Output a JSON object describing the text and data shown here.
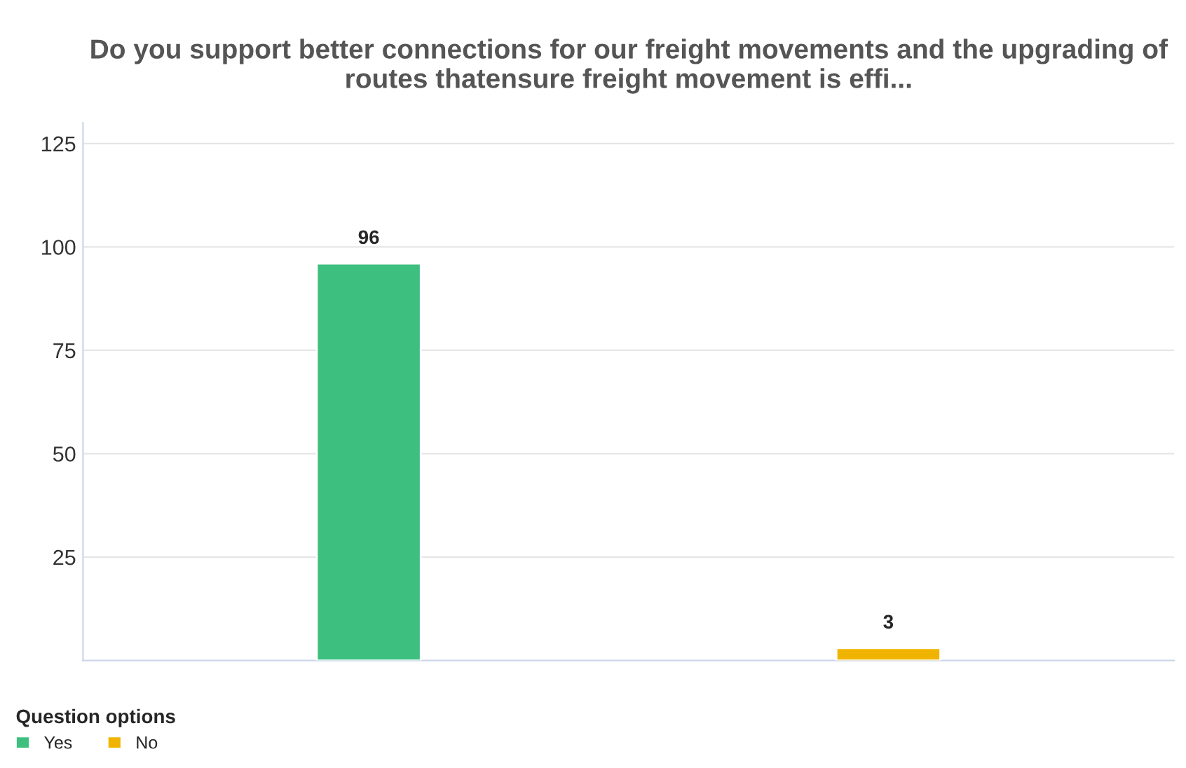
{
  "chart_data": {
    "type": "bar",
    "title": "Do you support better connections for our freight movements and the upgrading of routes thatensure freight movement is effi...",
    "categories": [
      null,
      null
    ],
    "series": [
      {
        "name": "Yes",
        "color": "#3dbf7f",
        "values": [
          96,
          null
        ]
      },
      {
        "name": "No",
        "color": "#f0b400",
        "values": [
          null,
          3
        ]
      }
    ],
    "ylim": [
      0,
      130
    ],
    "yticks": [
      25,
      50,
      75,
      100,
      125
    ],
    "grid": "y",
    "data_labels": true,
    "legend": "bottom left",
    "legend_title": "Question options"
  }
}
